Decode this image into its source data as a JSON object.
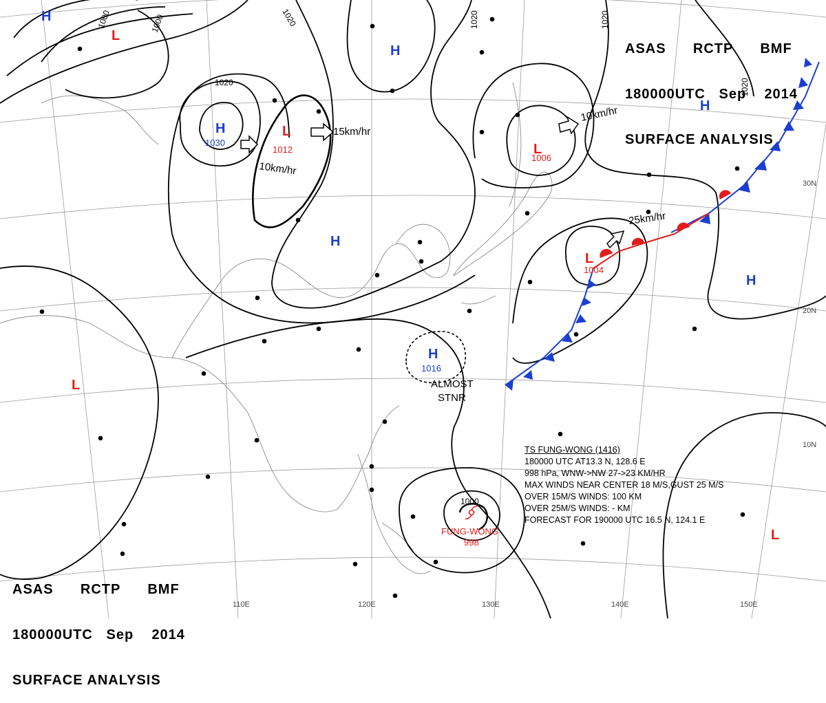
{
  "header": {
    "line1": {
      "a": "ASAS",
      "b": "RCTP",
      "c": "BMF"
    },
    "line2": {
      "a": "180000UTC",
      "b": "Sep",
      "c": "2014"
    },
    "line3": "SURFACE ANALYSIS"
  },
  "pressure_centers": [
    {
      "type": "H",
      "value": ""
    },
    {
      "type": "L",
      "value": ""
    },
    {
      "type": "H",
      "value": "1030"
    },
    {
      "type": "L",
      "value": "1012"
    },
    {
      "type": "H",
      "value": ""
    },
    {
      "type": "H",
      "value": ""
    },
    {
      "type": "L",
      "value": "1006"
    },
    {
      "type": "H",
      "value": ""
    },
    {
      "type": "L",
      "value": "1004"
    },
    {
      "type": "H",
      "value": ""
    },
    {
      "type": "H",
      "value": "1016"
    },
    {
      "type": "L",
      "value": ""
    },
    {
      "type": "L",
      "value": ""
    }
  ],
  "isobar_labels": [
    "1000",
    "1000",
    "1020",
    "1020",
    "1020",
    "1020",
    "1020",
    "1000"
  ],
  "movement_labels": [
    "15km/hr",
    "10km/hr",
    "10km/hr",
    "25km/hr"
  ],
  "annotations": {
    "stationary": "ALMOST\nSTNR"
  },
  "typhoon": {
    "name_label": "FUNG-WONG",
    "pressure_label": "998",
    "symbol": "typhoon-symbol",
    "info": {
      "title": "TS  FUNG-WONG  (1416)",
      "line1": "180000 UTC  AT13.3 N, 128.6 E",
      "line2": "998 hPa, WNW->NW  27->23 KM/HR",
      "line3": "MAX WINDS NEAR CENTER 18 M/S,GUST 25 M/S",
      "line4": "OVER 15M/S WINDS: 100 KM",
      "line5": "OVER 25M/S WINDS: - KM",
      "line6": "FORECAST FOR 190000 UTC 16.5 N, 124.1 E"
    }
  },
  "graticule_labels": {
    "lon": [
      "110E",
      "120E",
      "130E",
      "140E",
      "150E"
    ],
    "lat": [
      "30N",
      "20N",
      "10N"
    ]
  },
  "colors": {
    "high": "#1a3fd0",
    "low": "#e31b1b",
    "cold_front": "#1a3fd0",
    "warm_front": "#e31b1b",
    "isobar": "#000000",
    "grid": "#9a9a9a",
    "coast": "#8a8a8a"
  }
}
